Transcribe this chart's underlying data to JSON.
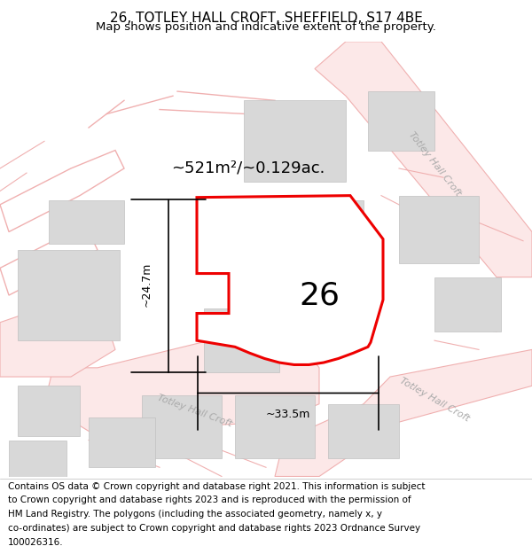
{
  "title": "26, TOTLEY HALL CROFT, SHEFFIELD, S17 4BE",
  "subtitle": "Map shows position and indicative extent of the property.",
  "area_label": "~521m²/~0.129ac.",
  "plot_number": "26",
  "dim_width": "~33.5m",
  "dim_height": "~24.7m",
  "road_label_upper": "Totley Hall Croft",
  "road_label_lower_left": "Totley Hall Croft",
  "road_label_lower_right": "Totley Hall Croft",
  "bg_color": "#ffffff",
  "map_bg": "#f9f9f9",
  "road_outline_color": "#f0b0b0",
  "road_fill_color": "#fce8e8",
  "plot_edge_color": "#ee0000",
  "plot_fill_color": "#ffffff",
  "building_color": "#d8d8d8",
  "building_edge_color": "#c0c0c0",
  "title_fontsize": 11,
  "subtitle_fontsize": 9.5,
  "footer_fontsize": 7.5,
  "footer_lines": [
    "Contains OS data © Crown copyright and database right 2021. This information is subject",
    "to Crown copyright and database rights 2023 and is reproduced with the permission of",
    "HM Land Registry. The polygons (including the associated geometry, namely x, y",
    "co-ordinates) are subject to Crown copyright and database rights 2023 Ordnance Survey",
    "100026316."
  ]
}
